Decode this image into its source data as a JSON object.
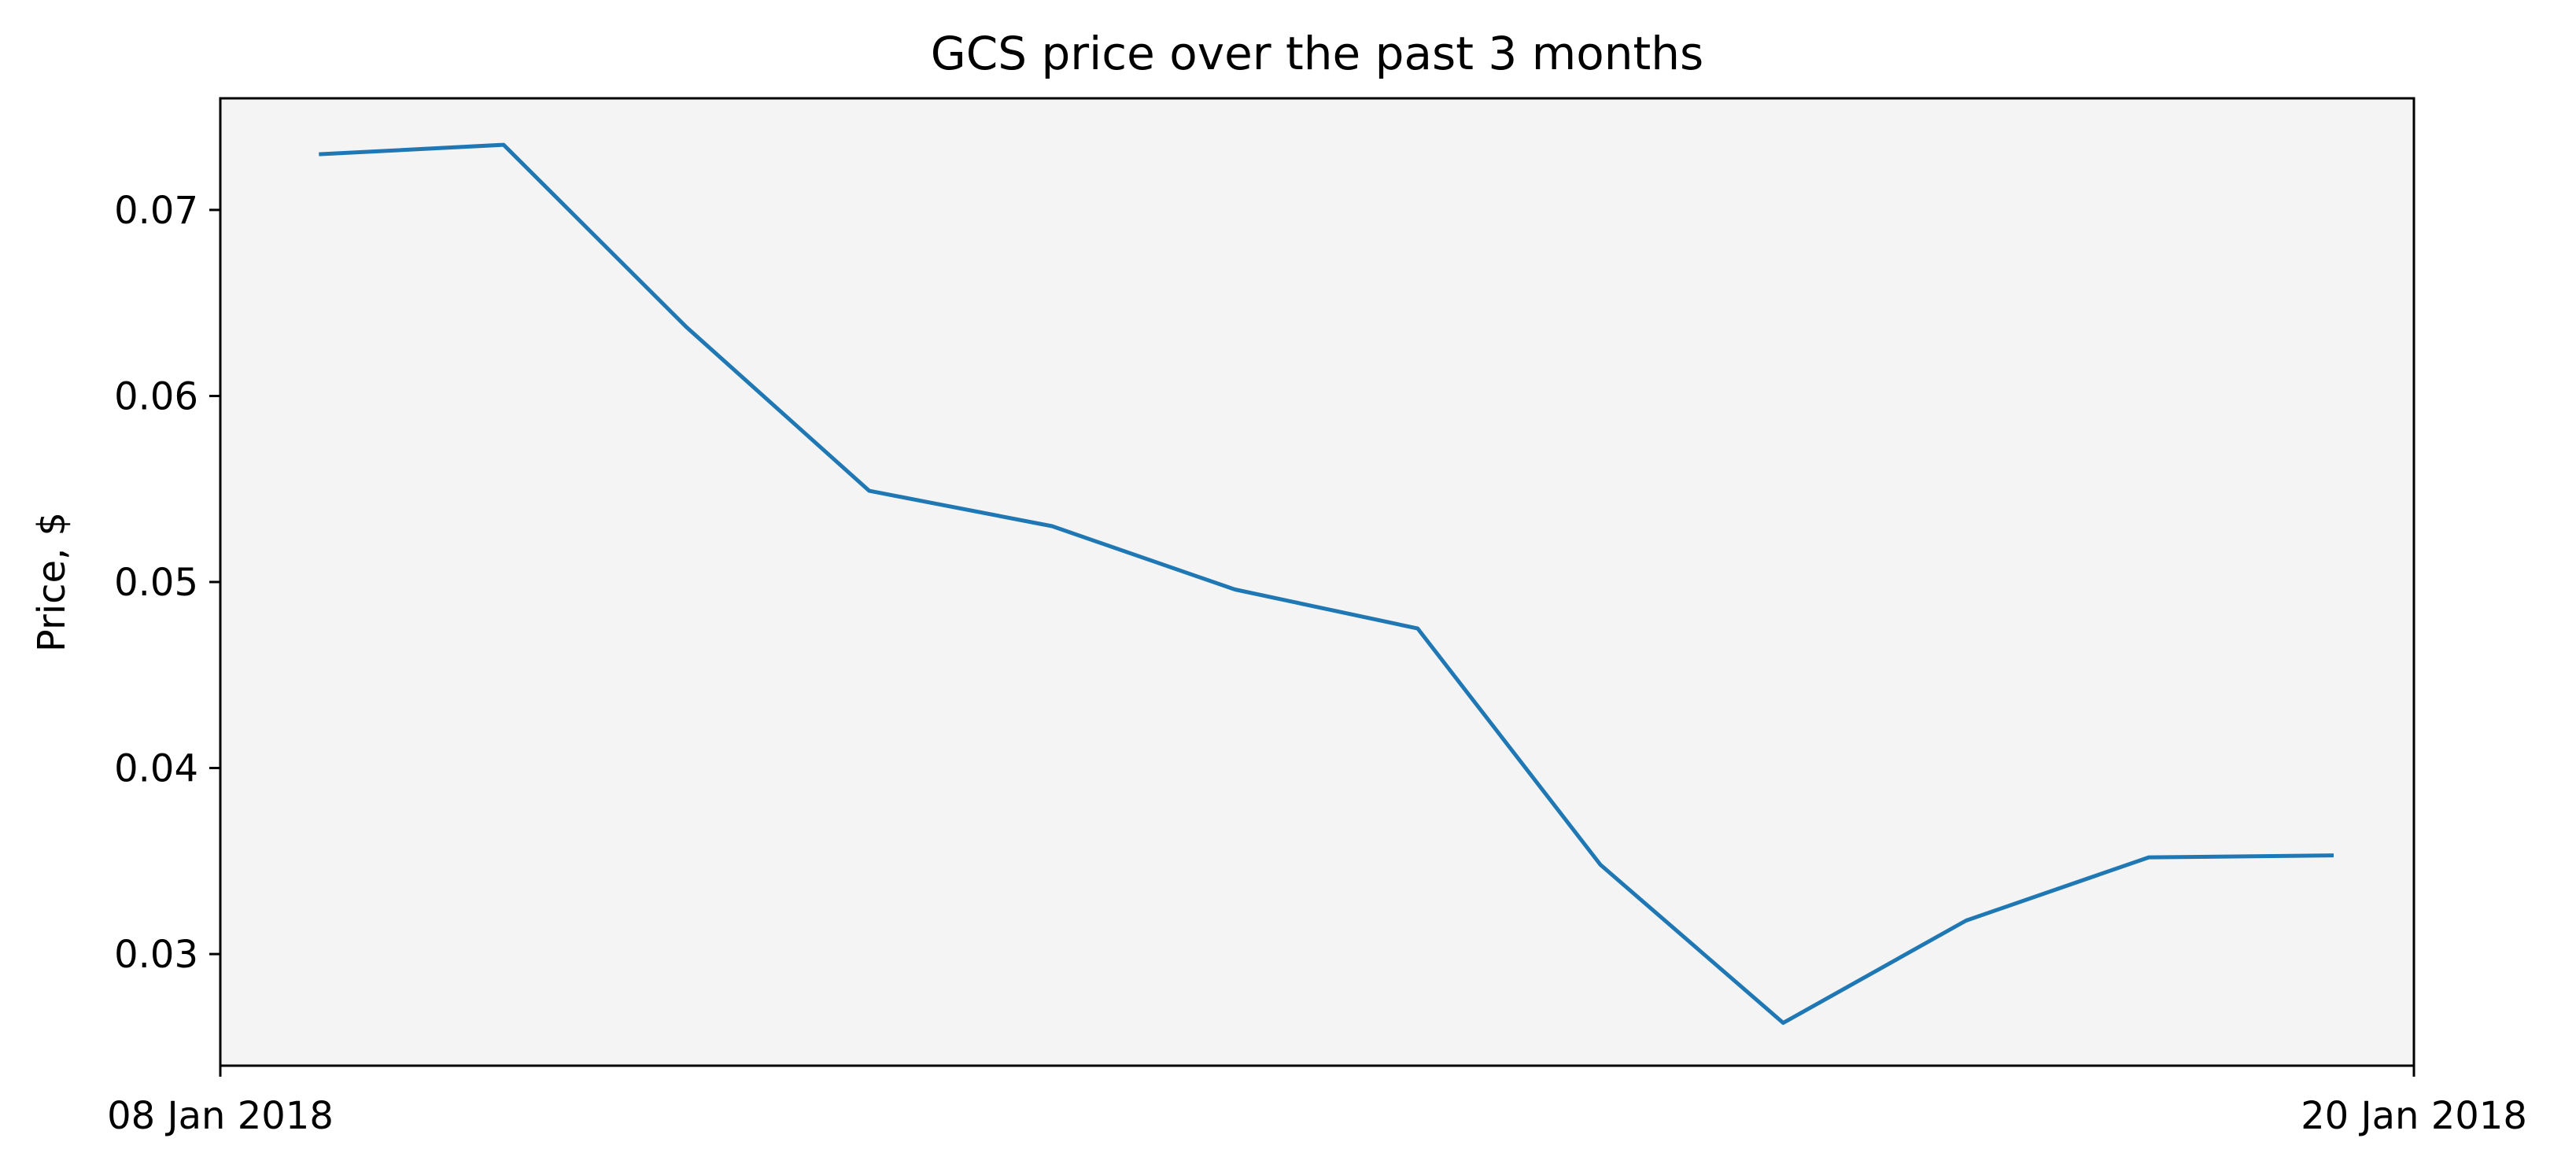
{
  "chart_data": {
    "type": "line",
    "title": "GCS price over the past 3 months",
    "xlabel": "",
    "ylabel": "Price, $",
    "x_tick_labels": [
      "08 Jan 2018",
      "20 Jan 2018"
    ],
    "y_ticks": [
      0.03,
      0.04,
      0.05,
      0.06,
      0.07
    ],
    "y_tick_labels": [
      "0.03",
      "0.04",
      "0.05",
      "0.06",
      "0.07"
    ],
    "xlim": [
      "2018-01-08",
      "2018-01-20"
    ],
    "ylim": [
      0.024,
      0.076
    ],
    "grid": false,
    "background_color": "#f4f4f4",
    "series": [
      {
        "color": "#1f77b4",
        "x": [
          "2018-01-08T13:12",
          "2018-01-09T13:12",
          "2018-01-10T13:12",
          "2018-01-11T13:12",
          "2018-01-12T13:12",
          "2018-01-13T13:12",
          "2018-01-14T13:12",
          "2018-01-15T13:12",
          "2018-01-16T13:12",
          "2018-01-17T13:12",
          "2018-01-18T13:12",
          "2018-01-19T13:12"
        ],
        "values": [
          0.073,
          0.0735,
          0.0637,
          0.0549,
          0.053,
          0.0496,
          0.0475,
          0.0348,
          0.0263,
          0.0318,
          0.0352,
          0.0353
        ]
      }
    ]
  }
}
